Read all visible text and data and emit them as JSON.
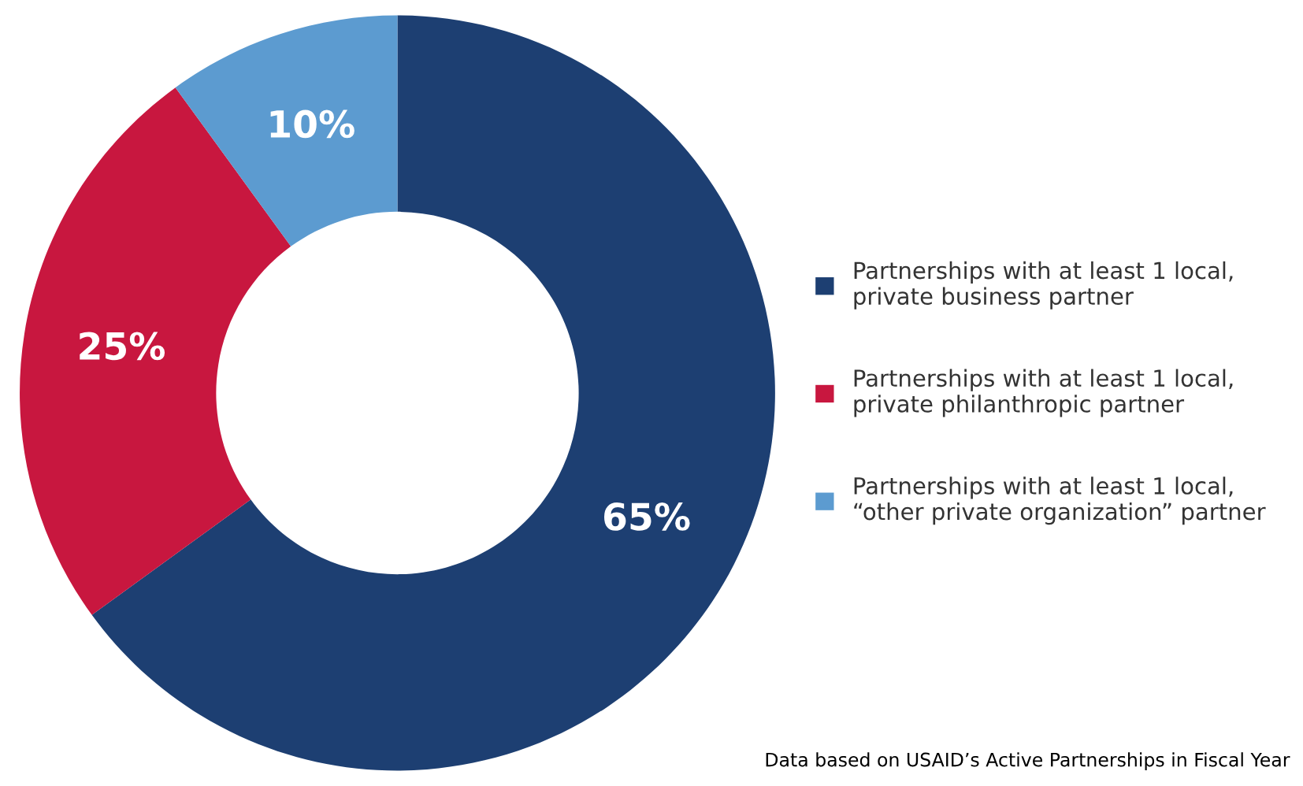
{
  "chart_data": {
    "type": "donut",
    "categories": [
      "Partnerships with at least 1 local,\nprivate business partner",
      "Partnerships with at least 1 local,\nprivate philanthropic partner",
      "Partnerships with at least 1 local,\n“other private organization” partner"
    ],
    "values": [
      65,
      25,
      10
    ],
    "colors": [
      "#1d3f72",
      "#c8173f",
      "#5c9bd0"
    ],
    "value_labels": [
      "65%",
      "25%",
      "10%"
    ],
    "legend": "right",
    "annotations": [
      "Data based on USAID’s Active Partnerships in Fiscal Year"
    ]
  }
}
